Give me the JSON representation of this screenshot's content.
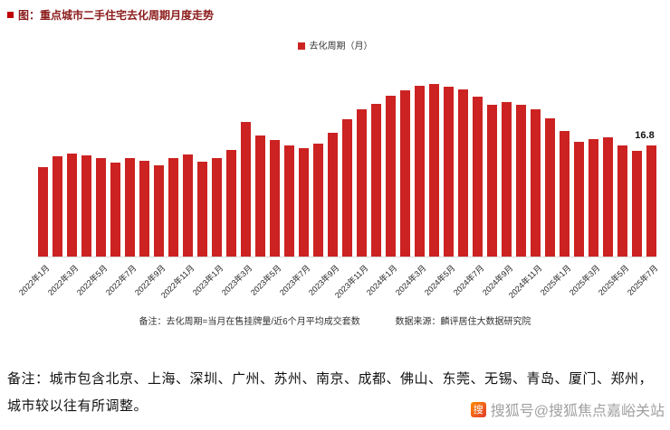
{
  "figure": {
    "title": "图：重点城市二手住宅去化周期月度走势",
    "legend_label": "去化周期（月）",
    "note_left": "备注：去化周期=当月在售挂牌量/近6个月平均成交套数",
    "note_right": "数据来源：麟评居住大数据研究院"
  },
  "chart_data": {
    "type": "bar",
    "title": "重点城市二手住宅去化周期月度走势",
    "legend": [
      "去化周期（月）"
    ],
    "legend_position": "top-center",
    "bar_color": "#cc2222",
    "ylim": [
      0,
      27
    ],
    "grid": false,
    "tick_every": 2,
    "categories": [
      "2022年1月",
      "2022年2月",
      "2022年3月",
      "2022年4月",
      "2022年5月",
      "2022年6月",
      "2022年7月",
      "2022年8月",
      "2022年9月",
      "2022年10月",
      "2022年11月",
      "2022年12月",
      "2023年1月",
      "2023年2月",
      "2023年3月",
      "2023年4月",
      "2023年5月",
      "2023年6月",
      "2023年7月",
      "2023年8月",
      "2023年9月",
      "2023年10月",
      "2023年11月",
      "2023年12月",
      "2024年1月",
      "2024年2月",
      "2024年3月",
      "2024年4月",
      "2024年5月",
      "2024年6月",
      "2024年7月",
      "2024年8月",
      "2024年9月",
      "2024年10月",
      "2024年11月",
      "2024年12月",
      "2025年1月",
      "2025年2月",
      "2025年3月",
      "2025年4月",
      "2025年5月",
      "2025年6月",
      "2025年7月"
    ],
    "values": [
      13.6,
      15.2,
      15.6,
      15.3,
      14.9,
      14.2,
      15.0,
      14.5,
      13.9,
      15.0,
      15.5,
      14.4,
      15.0,
      16.2,
      20.4,
      18.4,
      17.7,
      16.9,
      16.4,
      17.2,
      18.8,
      20.9,
      22.3,
      23.2,
      24.4,
      25.2,
      25.9,
      26.2,
      25.8,
      25.3,
      24.3,
      23.0,
      23.5,
      23.0,
      22.3,
      21.0,
      19.0,
      17.4,
      17.8,
      18.1,
      16.9,
      16.1,
      16.8
    ],
    "annotations": [
      {
        "index": 42,
        "text": "16.8"
      }
    ]
  },
  "footer": {
    "note_line1": "备注：城市包含北京、上海、深圳、广州、苏州、南京、成都、佛山、东莞、无锡、青岛、厦门、郑州，",
    "note_line2": "城市较以往有所调整。",
    "watermark_icon": "搜",
    "watermark": "搜狐号@搜狐焦点嘉峪关站"
  }
}
